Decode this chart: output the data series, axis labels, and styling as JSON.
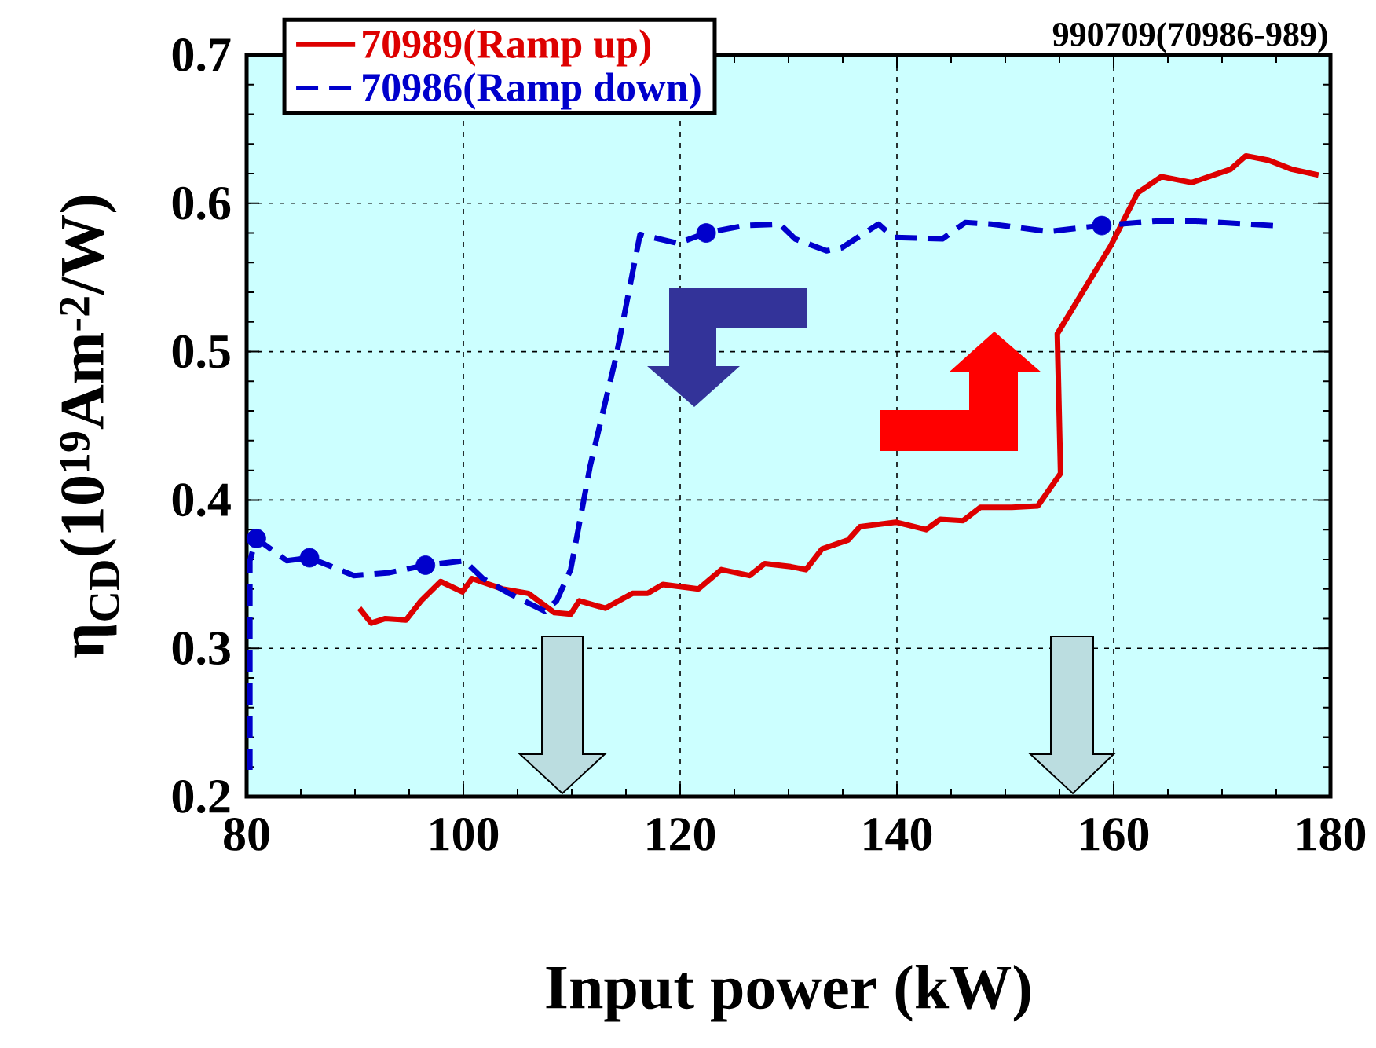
{
  "chart_data": {
    "type": "line",
    "annotations": [
      "990709(70986-989)"
    ],
    "xlabel": "Input power (kW)",
    "ylabel": "η$_{CD}$(10$^{19}$Am$^{-2}$/W)",
    "xlim": [
      80,
      180
    ],
    "ylim": [
      0.2,
      0.7
    ],
    "xticks": [
      80,
      100,
      120,
      140,
      160,
      180
    ],
    "yticks": [
      0.2,
      0.3,
      0.4,
      0.5,
      0.6,
      0.7
    ],
    "grid": true,
    "legend": "top left",
    "series": [
      {
        "name": "70989(Ramp up)",
        "color": "#dd0000",
        "line_style": "solid",
        "marker": "none",
        "x": [
          90.4,
          91.5,
          92.8,
          94.7,
          96.1,
          97.9,
          99.9,
          100.8,
          103.6,
          106.0,
          108.4,
          109.9,
          110.7,
          113.1,
          115.6,
          117.0,
          118.4,
          121.7,
          123.8,
          126.4,
          127.8,
          130.2,
          131.6,
          133.1,
          135.5,
          136.6,
          139.9,
          142.7,
          144.0,
          146.1,
          147.7,
          150.6,
          153.0,
          155.1,
          154.8,
          159.7,
          162.2,
          164.4,
          167.2,
          170.8,
          172.2,
          174.3,
          176.4,
          178.9
        ],
        "values": [
          0.327,
          0.317,
          0.32,
          0.319,
          0.332,
          0.345,
          0.338,
          0.347,
          0.34,
          0.337,
          0.324,
          0.323,
          0.332,
          0.327,
          0.337,
          0.337,
          0.343,
          0.34,
          0.353,
          0.349,
          0.357,
          0.355,
          0.353,
          0.367,
          0.373,
          0.382,
          0.385,
          0.38,
          0.387,
          0.386,
          0.395,
          0.395,
          0.396,
          0.418,
          0.512,
          0.571,
          0.607,
          0.618,
          0.614,
          0.623,
          0.632,
          0.629,
          0.623,
          0.619
        ]
      },
      {
        "name": "70986(Ramp down)",
        "color": "#0000cc",
        "line_style": "dashed",
        "marker": "none",
        "x": [
          80.3,
          80.3,
          80.9,
          83.7,
          85.8,
          89.9,
          93.2,
          96.5,
          100.1,
          101.8,
          104.2,
          107.5,
          108.6,
          109.9,
          111.7,
          114.1,
          116.3,
          119.8,
          122.4,
          125.9,
          129.2,
          130.6,
          133.5,
          134.9,
          138.3,
          139.7,
          144.2,
          146.3,
          148.7,
          154.0,
          158.9,
          163.9,
          167.6,
          174.7
        ],
        "values": [
          0.218,
          0.359,
          0.374,
          0.359,
          0.361,
          0.349,
          0.351,
          0.356,
          0.359,
          0.347,
          0.337,
          0.325,
          0.332,
          0.353,
          0.423,
          0.497,
          0.579,
          0.573,
          0.58,
          0.585,
          0.586,
          0.576,
          0.568,
          0.57,
          0.586,
          0.577,
          0.576,
          0.587,
          0.586,
          0.581,
          0.585,
          0.588,
          0.588,
          0.585
        ]
      },
      {
        "type": "scatter",
        "color": "#0000cc",
        "marker": "circle",
        "x": [
          80.9,
          85.8,
          96.5,
          122.4,
          158.9
        ],
        "values": [
          0.374,
          0.361,
          0.356,
          0.58,
          0.585
        ]
      }
    ]
  }
}
